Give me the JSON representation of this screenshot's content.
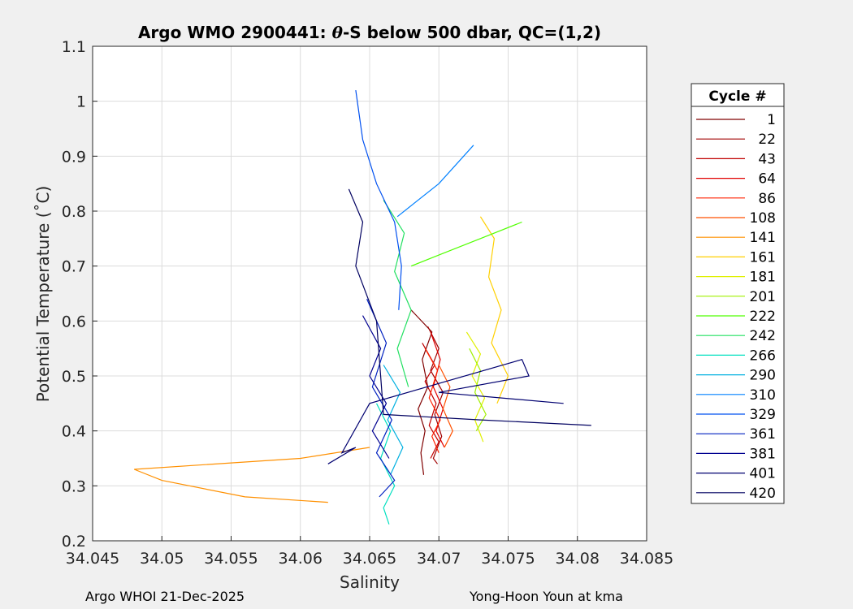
{
  "chart_data": {
    "type": "line",
    "title": "Argo WMO 2900441: θ-S below 500 dbar,  QC=(1,2)",
    "title_prefix": "Argo WMO 2900441: ",
    "title_theta": "θ",
    "title_suffix": "-S below 500 dbar,  QC=(1,2)",
    "xlabel": "Salinity",
    "ylabel": "Potential Temperature (˚C)",
    "xlim": [
      34.045,
      34.085
    ],
    "ylim": [
      0.2,
      1.1
    ],
    "x_ticks": [
      "34.045",
      "34.05",
      "34.055",
      "34.06",
      "34.065",
      "34.07",
      "34.075",
      "34.08",
      "34.085"
    ],
    "y_ticks": [
      "0.2",
      "0.3",
      "0.4",
      "0.5",
      "0.6",
      "0.7",
      "0.8",
      "0.9",
      "1",
      "1.1"
    ],
    "grid": true,
    "legend_title": "Cycle #",
    "legend_position": "right",
    "series": [
      {
        "name": "1",
        "color": "#800000",
        "x": [
          34.068,
          34.0695,
          34.0688,
          34.0692,
          34.0685,
          34.069,
          34.0687,
          34.0689
        ],
        "y": [
          0.62,
          0.58,
          0.53,
          0.48,
          0.44,
          0.4,
          0.36,
          0.32
        ]
      },
      {
        "name": "22",
        "color": "#a00000",
        "x": [
          34.0692,
          34.07,
          34.0694,
          34.0703,
          34.0697,
          34.0702,
          34.0696,
          34.0699
        ],
        "y": [
          0.59,
          0.55,
          0.51,
          0.47,
          0.43,
          0.39,
          0.35,
          0.34
        ]
      },
      {
        "name": "43",
        "color": "#c00000",
        "x": [
          34.0688,
          34.0697,
          34.069,
          34.0698,
          34.0693,
          34.07,
          34.0694
        ],
        "y": [
          0.56,
          0.52,
          0.49,
          0.45,
          0.41,
          0.38,
          0.35
        ]
      },
      {
        "name": "64",
        "color": "#e00000",
        "x": [
          34.0694,
          34.0701,
          34.0696,
          34.0703,
          34.0698,
          34.0704
        ],
        "y": [
          0.58,
          0.53,
          0.48,
          0.44,
          0.4,
          0.37
        ]
      },
      {
        "name": "86",
        "color": "#ff2000",
        "x": [
          34.069,
          34.0699,
          34.0693,
          34.0701,
          34.0695,
          34.07
        ],
        "y": [
          0.55,
          0.51,
          0.46,
          0.42,
          0.39,
          0.36
        ]
      },
      {
        "name": "108",
        "color": "#ff5000",
        "x": [
          34.07,
          34.0708,
          34.0703,
          34.071,
          34.0704
        ],
        "y": [
          0.52,
          0.48,
          0.44,
          0.4,
          0.37
        ]
      },
      {
        "name": "141",
        "color": "#ff9000",
        "x": [
          34.062,
          34.056,
          34.05,
          34.048,
          34.06,
          34.065
        ],
        "y": [
          0.27,
          0.28,
          0.31,
          0.33,
          0.35,
          0.37
        ]
      },
      {
        "name": "161",
        "color": "#ffd000",
        "x": [
          34.073,
          34.074,
          34.0736,
          34.0745,
          34.0738,
          34.075,
          34.0742
        ],
        "y": [
          0.79,
          0.75,
          0.68,
          0.62,
          0.56,
          0.5,
          0.45
        ]
      },
      {
        "name": "181",
        "color": "#e0f000",
        "x": [
          34.072,
          34.073,
          34.0724,
          34.0733,
          34.0726,
          34.0732
        ],
        "y": [
          0.58,
          0.54,
          0.5,
          0.46,
          0.42,
          0.38
        ]
      },
      {
        "name": "201",
        "color": "#a0f000",
        "x": [
          34.0722,
          34.073,
          34.0726,
          34.0734,
          34.0727
        ],
        "y": [
          0.55,
          0.51,
          0.47,
          0.43,
          0.4
        ]
      },
      {
        "name": "222",
        "color": "#50ff00",
        "x": [
          34.068,
          34.07,
          34.073,
          34.076
        ],
        "y": [
          0.7,
          0.72,
          0.75,
          0.78
        ]
      },
      {
        "name": "242",
        "color": "#20e060",
        "x": [
          34.066,
          34.0675,
          34.0668,
          34.068,
          34.067,
          34.0678
        ],
        "y": [
          0.82,
          0.76,
          0.69,
          0.62,
          0.55,
          0.48
        ]
      },
      {
        "name": "266",
        "color": "#00e0c0",
        "x": [
          34.0655,
          34.0665,
          34.0658,
          34.0668,
          34.066,
          34.0664
        ],
        "y": [
          0.45,
          0.4,
          0.35,
          0.3,
          0.26,
          0.23
        ]
      },
      {
        "name": "290",
        "color": "#00b0e0",
        "x": [
          34.066,
          34.0672,
          34.0663,
          34.0674,
          34.0665
        ],
        "y": [
          0.52,
          0.47,
          0.42,
          0.37,
          0.32
        ]
      },
      {
        "name": "310",
        "color": "#0080ff",
        "x": [
          34.067,
          34.07,
          34.0725
        ],
        "y": [
          0.79,
          0.85,
          0.92
        ]
      },
      {
        "name": "329",
        "color": "#0050f0",
        "x": [
          34.064,
          34.0645,
          34.0655,
          34.0668,
          34.0673,
          34.0671
        ],
        "y": [
          1.02,
          0.93,
          0.85,
          0.78,
          0.7,
          0.62
        ]
      },
      {
        "name": "361",
        "color": "#0020c0",
        "x": [
          34.0648,
          34.0662,
          34.0652,
          34.0666,
          34.0655,
          34.0668,
          34.0657
        ],
        "y": [
          0.64,
          0.56,
          0.48,
          0.42,
          0.36,
          0.31,
          0.28
        ]
      },
      {
        "name": "381",
        "color": "#000090",
        "x": [
          34.0645,
          34.0658,
          34.065,
          34.0662,
          34.0652,
          34.0664
        ],
        "y": [
          0.61,
          0.55,
          0.5,
          0.45,
          0.4,
          0.35
        ]
      },
      {
        "name": "401",
        "color": "#000070",
        "x": [
          34.062,
          34.064,
          34.063,
          34.065,
          34.076,
          34.0765,
          34.07,
          34.079
        ],
        "y": [
          0.34,
          0.37,
          0.36,
          0.45,
          0.53,
          0.5,
          0.47,
          0.45
        ]
      },
      {
        "name": "420",
        "color": "#000060",
        "x": [
          34.0635,
          34.0645,
          34.064,
          34.0655,
          34.066,
          34.073,
          34.081
        ],
        "y": [
          0.84,
          0.78,
          0.7,
          0.6,
          0.43,
          0.42,
          0.41
        ]
      }
    ]
  },
  "footer": {
    "left": "Argo WHOI 21-Dec-2025",
    "right": "Yong-Hoon Youn at kma"
  }
}
